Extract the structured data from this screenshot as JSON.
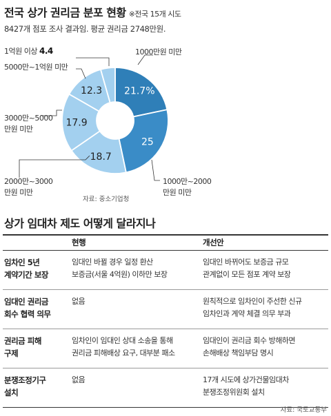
{
  "header": {
    "title": "전국 상가 권리금 분포 현황",
    "note": "※전국 15개 시도",
    "subtitle": "8427개 점포 조사 결과임. 평균 권리금 2748만원."
  },
  "chart_data": {
    "type": "pie",
    "donut": true,
    "unit": "%",
    "slices": [
      {
        "label": "1000만원 미만",
        "value": 21.7,
        "display": "21.7%",
        "color": "#2f7fb8",
        "text_color": "#ffffff"
      },
      {
        "label": "1000만~2000만원 미만",
        "value": 25,
        "display": "25",
        "color": "#3a8cc7",
        "text_color": "#ffffff"
      },
      {
        "label": "2000만~3000만원 미만",
        "value": 18.7,
        "display": "18.7",
        "color": "#a3d0ef",
        "text_color": "#222222"
      },
      {
        "label": "3000만~5000만원 미만",
        "value": 17.9,
        "display": "17.9",
        "color": "#a3d0ef",
        "text_color": "#222222"
      },
      {
        "label": "5000만~1억원 미만",
        "value": 12.3,
        "display": "12.3",
        "color": "#a3d0ef",
        "text_color": "#222222"
      },
      {
        "label": "1억원 이상",
        "value": 4.4,
        "display": "4.4",
        "color": "#a3d0ef",
        "text_color": "#222222"
      }
    ],
    "source": "자료: 중소기업청"
  },
  "labels": {
    "l1000": "1000만원 미만",
    "l1000_2000_a": "1000만~2000",
    "l1000_2000_b": "만원 미만",
    "l2000_3000_a": "2000만~3000",
    "l2000_3000_b": "만원 미만",
    "l3000_5000_a": "3000만~5000",
    "l3000_5000_b": "만원 미만",
    "l5000_1eok": "5000만~1억원 미만",
    "l1eok": "1억원 이상",
    "l1eok_value": "4.4"
  },
  "section": {
    "title": "상가 임대차 제도 어떻게 달라지나",
    "columns": [
      "",
      "현행",
      "개선안"
    ],
    "rows": [
      {
        "h1": "임차인 5년",
        "h2": "계약기간 보장",
        "c1": "임대인 바뀔 경우 일정 환산",
        "c2": "보증금(서울 4억원) 이하만 보장",
        "i1": "임대인 바뀌어도 보증금 규모",
        "i2": "관계없이 모든 점포 계약 보장"
      },
      {
        "h1": "임대인 권리금",
        "h2": "회수 협력 의무",
        "c1": "없음",
        "c2": "",
        "i1": "원칙적으로 임차인이 주선한 신규",
        "i2": "임차인과 계약 체결 의무 부과"
      },
      {
        "h1": "권리금 피해",
        "h2": "구제",
        "c1": "임차인이 임대인 상대 소송을 통해",
        "c2": "권리금 피해배상 요구, 대부분 패소",
        "i1": "임대인이 권리금 회수 방해하면",
        "i2": "손해배상 책임부담 명시"
      },
      {
        "h1": "분쟁조정기구",
        "h2": "설치",
        "c1": "없음",
        "c2": "",
        "i1": "17개 시도에 상가건물임대차",
        "i2": "분쟁조정위원회 설치"
      }
    ],
    "source": "자료: 국토교통부"
  }
}
